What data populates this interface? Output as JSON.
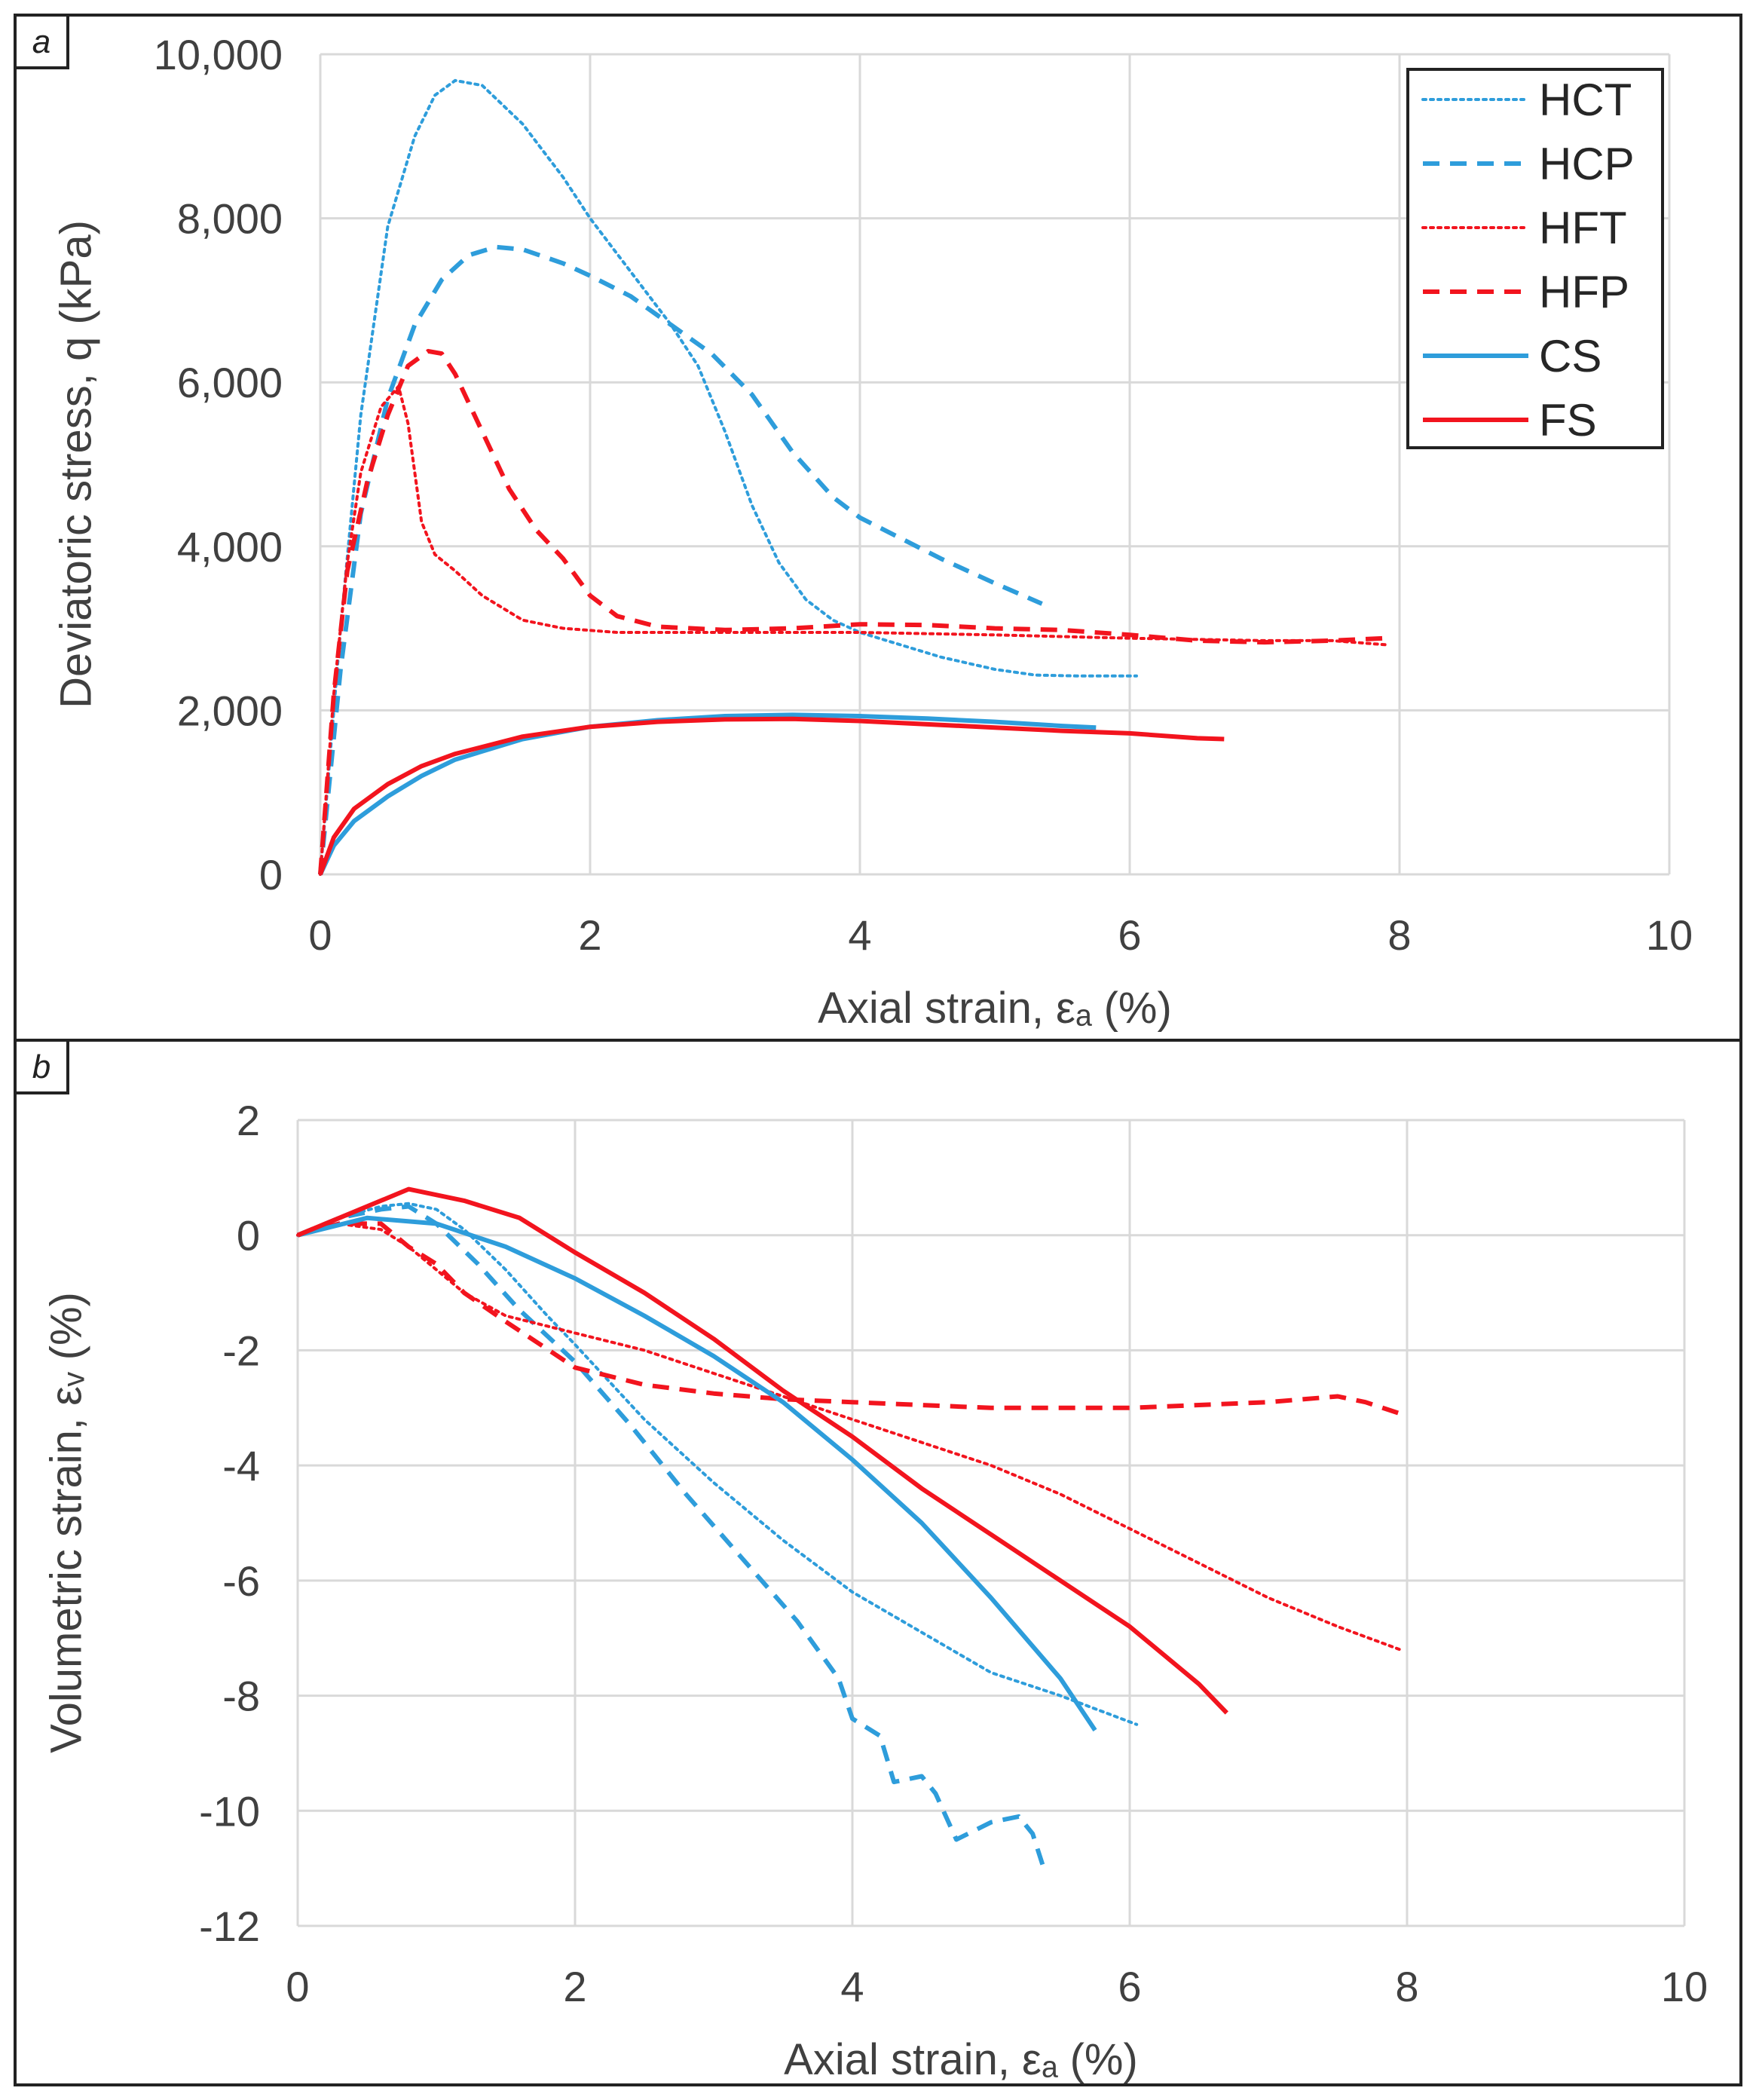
{
  "colors": {
    "blue": "#2e9ddb",
    "red": "#f2141e",
    "grid": "#d9d9d9",
    "text": "#404040"
  },
  "chart_data": [
    {
      "panel": "a",
      "type": "line",
      "xlabel": "Axial strain, εₐ (%)",
      "ylabel": "Deviatoric stress, q (kPa)",
      "xlim": [
        0,
        10
      ],
      "ylim": [
        0,
        10000
      ],
      "xticks": [
        0,
        2,
        4,
        6,
        8,
        10
      ],
      "yticks": [
        0,
        2000,
        4000,
        6000,
        8000,
        10000
      ],
      "xtick_labels": [
        "0",
        "2",
        "4",
        "6",
        "8",
        "10"
      ],
      "ytick_labels": [
        "0",
        "2,000",
        "4,000",
        "6,000",
        "8,000",
        "10,000"
      ],
      "grid": true,
      "legend_position": "top-right",
      "series": [
        {
          "name": "HCT",
          "color": "#2e9ddb",
          "style": "dotted",
          "points": [
            [
              0,
              0
            ],
            [
              0.15,
              3000
            ],
            [
              0.3,
              5600
            ],
            [
              0.5,
              7900
            ],
            [
              0.7,
              9000
            ],
            [
              0.85,
              9500
            ],
            [
              1.0,
              9680
            ],
            [
              1.2,
              9620
            ],
            [
              1.5,
              9150
            ],
            [
              1.8,
              8500
            ],
            [
              2.0,
              8000
            ],
            [
              2.3,
              7350
            ],
            [
              2.6,
              6700
            ],
            [
              2.8,
              6200
            ],
            [
              3.0,
              5400
            ],
            [
              3.2,
              4500
            ],
            [
              3.4,
              3800
            ],
            [
              3.6,
              3350
            ],
            [
              3.8,
              3100
            ],
            [
              4.0,
              2950
            ],
            [
              4.3,
              2800
            ],
            [
              4.6,
              2650
            ],
            [
              5.0,
              2500
            ],
            [
              5.3,
              2430
            ],
            [
              5.6,
              2420
            ],
            [
              6.05,
              2420
            ]
          ]
        },
        {
          "name": "HCP",
          "color": "#2e9ddb",
          "style": "dashed",
          "points": [
            [
              0,
              0
            ],
            [
              0.15,
              2500
            ],
            [
              0.3,
              4400
            ],
            [
              0.5,
              5800
            ],
            [
              0.7,
              6700
            ],
            [
              0.9,
              7250
            ],
            [
              1.1,
              7550
            ],
            [
              1.3,
              7650
            ],
            [
              1.5,
              7620
            ],
            [
              1.8,
              7450
            ],
            [
              2.0,
              7300
            ],
            [
              2.3,
              7050
            ],
            [
              2.6,
              6700
            ],
            [
              2.9,
              6350
            ],
            [
              3.2,
              5850
            ],
            [
              3.5,
              5150
            ],
            [
              3.8,
              4600
            ],
            [
              4.0,
              4350
            ],
            [
              4.3,
              4100
            ],
            [
              4.6,
              3850
            ],
            [
              5.0,
              3550
            ],
            [
              5.35,
              3300
            ]
          ]
        },
        {
          "name": "HFT",
          "color": "#f2141e",
          "style": "dotted",
          "points": [
            [
              0,
              0
            ],
            [
              0.1,
              2200
            ],
            [
              0.2,
              3800
            ],
            [
              0.3,
              4900
            ],
            [
              0.45,
              5700
            ],
            [
              0.58,
              5950
            ],
            [
              0.65,
              5500
            ],
            [
              0.75,
              4300
            ],
            [
              0.85,
              3900
            ],
            [
              1.0,
              3700
            ],
            [
              1.2,
              3400
            ],
            [
              1.5,
              3100
            ],
            [
              1.8,
              3000
            ],
            [
              2.2,
              2950
            ],
            [
              3.0,
              2950
            ],
            [
              4.0,
              2950
            ],
            [
              5.0,
              2920
            ],
            [
              6.0,
              2880
            ],
            [
              7.0,
              2850
            ],
            [
              7.5,
              2850
            ],
            [
              7.9,
              2800
            ]
          ]
        },
        {
          "name": "HFP",
          "color": "#f2141e",
          "style": "dashed",
          "points": [
            [
              0,
              0
            ],
            [
              0.1,
              2200
            ],
            [
              0.2,
              3700
            ],
            [
              0.35,
              4800
            ],
            [
              0.5,
              5600
            ],
            [
              0.65,
              6200
            ],
            [
              0.8,
              6380
            ],
            [
              0.9,
              6350
            ],
            [
              1.0,
              6100
            ],
            [
              1.2,
              5400
            ],
            [
              1.4,
              4700
            ],
            [
              1.6,
              4200
            ],
            [
              1.8,
              3850
            ],
            [
              2.0,
              3400
            ],
            [
              2.2,
              3150
            ],
            [
              2.5,
              3020
            ],
            [
              3.0,
              2980
            ],
            [
              3.5,
              3000
            ],
            [
              4.0,
              3050
            ],
            [
              4.5,
              3040
            ],
            [
              5.0,
              3000
            ],
            [
              5.5,
              2980
            ],
            [
              6.0,
              2920
            ],
            [
              6.5,
              2850
            ],
            [
              7.0,
              2830
            ],
            [
              7.5,
              2850
            ],
            [
              7.9,
              2880
            ]
          ]
        },
        {
          "name": "CS",
          "color": "#2e9ddb",
          "style": "solid",
          "points": [
            [
              0,
              0
            ],
            [
              0.1,
              350
            ],
            [
              0.25,
              650
            ],
            [
              0.5,
              950
            ],
            [
              0.75,
              1200
            ],
            [
              1.0,
              1400
            ],
            [
              1.5,
              1650
            ],
            [
              2.0,
              1800
            ],
            [
              2.5,
              1880
            ],
            [
              3.0,
              1930
            ],
            [
              3.5,
              1945
            ],
            [
              4.0,
              1930
            ],
            [
              4.5,
              1900
            ],
            [
              5.0,
              1860
            ],
            [
              5.5,
              1810
            ],
            [
              5.75,
              1790
            ]
          ]
        },
        {
          "name": "FS",
          "color": "#f2141e",
          "style": "solid",
          "points": [
            [
              0,
              0
            ],
            [
              0.1,
              450
            ],
            [
              0.25,
              800
            ],
            [
              0.5,
              1100
            ],
            [
              0.75,
              1320
            ],
            [
              1.0,
              1470
            ],
            [
              1.5,
              1680
            ],
            [
              2.0,
              1800
            ],
            [
              2.5,
              1860
            ],
            [
              3.0,
              1890
            ],
            [
              3.5,
              1895
            ],
            [
              4.0,
              1870
            ],
            [
              4.5,
              1830
            ],
            [
              5.0,
              1790
            ],
            [
              5.5,
              1750
            ],
            [
              6.0,
              1720
            ],
            [
              6.5,
              1660
            ],
            [
              6.7,
              1650
            ]
          ]
        }
      ]
    },
    {
      "panel": "b",
      "type": "line",
      "xlabel": "Axial strain, εₐ (%)",
      "ylabel": "Volumetric strain, εᵥ (%)",
      "xlim": [
        0,
        10
      ],
      "ylim": [
        -12,
        2
      ],
      "xticks": [
        0,
        2,
        4,
        6,
        8,
        10
      ],
      "yticks": [
        -12,
        -10,
        -8,
        -6,
        -4,
        -2,
        0,
        2
      ],
      "xtick_labels": [
        "0",
        "2",
        "4",
        "6",
        "8",
        "10"
      ],
      "ytick_labels": [
        "-12",
        "-10",
        "-8",
        "-6",
        "-4",
        "-2",
        "0",
        "2"
      ],
      "grid": true,
      "series": [
        {
          "name": "HCT",
          "color": "#2e9ddb",
          "style": "dotted",
          "points": [
            [
              0,
              0
            ],
            [
              0.3,
              0.3
            ],
            [
              0.6,
              0.5
            ],
            [
              0.8,
              0.55
            ],
            [
              1.0,
              0.45
            ],
            [
              1.2,
              0.1
            ],
            [
              1.5,
              -0.6
            ],
            [
              1.8,
              -1.4
            ],
            [
              2.0,
              -1.9
            ],
            [
              2.5,
              -3.2
            ],
            [
              3.0,
              -4.3
            ],
            [
              3.5,
              -5.3
            ],
            [
              4.0,
              -6.2
            ],
            [
              4.5,
              -6.9
            ],
            [
              5.0,
              -7.6
            ],
            [
              5.5,
              -8.0
            ],
            [
              6.05,
              -8.5
            ]
          ]
        },
        {
          "name": "HCP",
          "color": "#2e9ddb",
          "style": "dashed",
          "points": [
            [
              0,
              0
            ],
            [
              0.3,
              0.3
            ],
            [
              0.6,
              0.45
            ],
            [
              0.8,
              0.5
            ],
            [
              1.0,
              0.2
            ],
            [
              1.3,
              -0.5
            ],
            [
              1.6,
              -1.3
            ],
            [
              2.0,
              -2.2
            ],
            [
              2.4,
              -3.3
            ],
            [
              2.8,
              -4.5
            ],
            [
              3.2,
              -5.6
            ],
            [
              3.6,
              -6.7
            ],
            [
              3.9,
              -7.7
            ],
            [
              4.0,
              -8.4
            ],
            [
              4.2,
              -8.7
            ],
            [
              4.3,
              -9.5
            ],
            [
              4.5,
              -9.4
            ],
            [
              4.6,
              -9.7
            ],
            [
              4.75,
              -10.5
            ],
            [
              5.0,
              -10.2
            ],
            [
              5.2,
              -10.1
            ],
            [
              5.3,
              -10.4
            ],
            [
              5.38,
              -11.0
            ]
          ]
        },
        {
          "name": "HFT",
          "color": "#f2141e",
          "style": "dotted",
          "points": [
            [
              0,
              0
            ],
            [
              0.3,
              0.2
            ],
            [
              0.6,
              0.1
            ],
            [
              0.8,
              -0.2
            ],
            [
              1.0,
              -0.6
            ],
            [
              1.2,
              -1.0
            ],
            [
              1.5,
              -1.4
            ],
            [
              2.0,
              -1.7
            ],
            [
              2.5,
              -2.0
            ],
            [
              3.0,
              -2.4
            ],
            [
              3.5,
              -2.8
            ],
            [
              4.0,
              -3.2
            ],
            [
              4.5,
              -3.6
            ],
            [
              5.0,
              -4.0
            ],
            [
              5.5,
              -4.5
            ],
            [
              6.0,
              -5.1
            ],
            [
              6.5,
              -5.7
            ],
            [
              7.0,
              -6.3
            ],
            [
              7.5,
              -6.8
            ],
            [
              7.95,
              -7.2
            ]
          ]
        },
        {
          "name": "HFP",
          "color": "#f2141e",
          "style": "dashed",
          "points": [
            [
              0,
              0
            ],
            [
              0.3,
              0.2
            ],
            [
              0.6,
              0.2
            ],
            [
              0.8,
              -0.2
            ],
            [
              1.0,
              -0.5
            ],
            [
              1.2,
              -1.0
            ],
            [
              1.5,
              -1.5
            ],
            [
              2.0,
              -2.3
            ],
            [
              2.5,
              -2.6
            ],
            [
              3.0,
              -2.75
            ],
            [
              3.5,
              -2.85
            ],
            [
              4.0,
              -2.9
            ],
            [
              4.5,
              -2.95
            ],
            [
              5.0,
              -3.0
            ],
            [
              5.5,
              -3.0
            ],
            [
              6.0,
              -3.0
            ],
            [
              6.5,
              -2.95
            ],
            [
              7.0,
              -2.9
            ],
            [
              7.5,
              -2.8
            ],
            [
              7.7,
              -2.9
            ],
            [
              7.95,
              -3.1
            ]
          ]
        },
        {
          "name": "CS",
          "color": "#2e9ddb",
          "style": "solid",
          "points": [
            [
              0,
              0
            ],
            [
              0.5,
              0.3
            ],
            [
              1.0,
              0.2
            ],
            [
              1.5,
              -0.2
            ],
            [
              2.0,
              -0.75
            ],
            [
              2.5,
              -1.4
            ],
            [
              3.0,
              -2.1
            ],
            [
              3.5,
              -2.9
            ],
            [
              4.0,
              -3.9
            ],
            [
              4.5,
              -5.0
            ],
            [
              5.0,
              -6.3
            ],
            [
              5.5,
              -7.7
            ],
            [
              5.75,
              -8.6
            ]
          ]
        },
        {
          "name": "FS",
          "color": "#f2141e",
          "style": "solid",
          "points": [
            [
              0,
              0
            ],
            [
              0.4,
              0.4
            ],
            [
              0.8,
              0.8
            ],
            [
              1.2,
              0.6
            ],
            [
              1.6,
              0.3
            ],
            [
              2.0,
              -0.3
            ],
            [
              2.5,
              -1.0
            ],
            [
              3.0,
              -1.8
            ],
            [
              3.5,
              -2.7
            ],
            [
              4.0,
              -3.5
            ],
            [
              4.5,
              -4.4
            ],
            [
              5.0,
              -5.2
            ],
            [
              5.5,
              -6.0
            ],
            [
              6.0,
              -6.8
            ],
            [
              6.5,
              -7.8
            ],
            [
              6.7,
              -8.3
            ]
          ]
        }
      ]
    }
  ]
}
